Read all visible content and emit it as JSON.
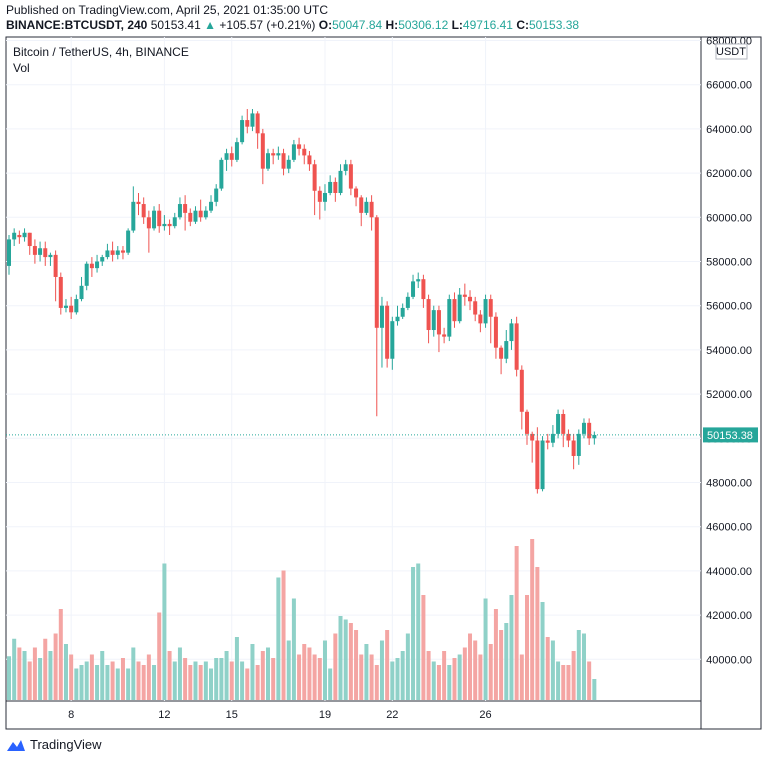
{
  "header": {
    "published": "Published on TradingView.com, April 25, 2021 01:35:00 UTC",
    "symbol": "BINANCE:BTCUSDT, 240",
    "last": "50153.41",
    "change": "+105.57 (+0.21%)",
    "o_label": "O:",
    "o": "50047.84",
    "h_label": "H:",
    "h": "50306.12",
    "l_label": "L:",
    "l": "49716.41",
    "c_label": "C:",
    "c": "50153.38"
  },
  "chart_title": "Bitcoin / TetherUS, 4h, BINANCE",
  "vol_label": "Vol",
  "footer": {
    "brand": "TradingView"
  },
  "colors": {
    "up": "#26a69a",
    "down": "#ef5350",
    "up_vol": "#8fd1c8",
    "down_vol": "#f4a5a3",
    "grid": "#f0f3fa"
  },
  "chart_data": {
    "type": "candlestick",
    "price_axis": {
      "unit_label": "USDT",
      "ticks": [
        "68000.00",
        "66000.00",
        "64000.00",
        "62000.00",
        "60000.00",
        "58000.00",
        "56000.00",
        "54000.00",
        "52000.00",
        "50000.00",
        "48000.00",
        "46000.00",
        "44000.00",
        "42000.00",
        "40000.00"
      ],
      "ylim": [
        38500,
        68300
      ],
      "last_price_label": "50153.38",
      "last_price": 50153.38
    },
    "x_axis": {
      "ticks": [
        "8",
        "12",
        "15",
        "19",
        "22",
        "26"
      ],
      "tick_index": [
        12,
        30,
        43,
        61,
        74,
        92
      ]
    },
    "candles": [
      [
        57800,
        59000,
        57400,
        59200
      ],
      [
        59000,
        59300,
        58700,
        59500
      ],
      [
        59200,
        59100,
        58800,
        59400
      ],
      [
        59100,
        59300,
        58900,
        59500
      ],
      [
        59300,
        58700,
        58300,
        59300
      ],
      [
        58700,
        58300,
        57900,
        59000
      ],
      [
        58300,
        58600,
        58000,
        58900
      ],
      [
        58600,
        58200,
        57800,
        58900
      ],
      [
        58200,
        58300,
        57800,
        58400
      ],
      [
        58300,
        57300,
        56200,
        58500
      ],
      [
        57300,
        55900,
        55600,
        57500
      ],
      [
        55900,
        56000,
        55700,
        56300
      ],
      [
        56000,
        55700,
        55400,
        56400
      ],
      [
        55700,
        56300,
        55600,
        56500
      ],
      [
        56300,
        56900,
        56200,
        57300
      ],
      [
        56900,
        57900,
        56700,
        58000
      ],
      [
        57900,
        57700,
        57300,
        58200
      ],
      [
        57700,
        58000,
        57500,
        58300
      ],
      [
        58000,
        58200,
        57800,
        58300
      ],
      [
        58200,
        58500,
        58100,
        58800
      ],
      [
        58500,
        58300,
        58000,
        58900
      ],
      [
        58300,
        58500,
        58100,
        58700
      ],
      [
        58500,
        58400,
        58100,
        58700
      ],
      [
        58400,
        59400,
        58300,
        59500
      ],
      [
        59400,
        60700,
        59300,
        61400
      ],
      [
        60700,
        60600,
        60100,
        61100
      ],
      [
        60600,
        60000,
        59700,
        60900
      ],
      [
        60000,
        59500,
        58400,
        60300
      ],
      [
        59500,
        60300,
        59400,
        60500
      ],
      [
        60300,
        59600,
        59300,
        60600
      ],
      [
        59600,
        59700,
        59400,
        60100
      ],
      [
        59700,
        59600,
        59200,
        59900
      ],
      [
        59600,
        60000,
        59500,
        60200
      ],
      [
        60000,
        60600,
        59900,
        60900
      ],
      [
        60600,
        60200,
        59400,
        61000
      ],
      [
        60200,
        59800,
        59600,
        60400
      ],
      [
        59800,
        60300,
        59700,
        60500
      ],
      [
        60300,
        60000,
        59800,
        60800
      ],
      [
        60000,
        60300,
        59900,
        60500
      ],
      [
        60300,
        60700,
        60200,
        61000
      ],
      [
        60700,
        61300,
        60500,
        61500
      ],
      [
        61300,
        62600,
        61200,
        62700
      ],
      [
        62600,
        62900,
        62100,
        63100
      ],
      [
        62900,
        62600,
        62300,
        63200
      ],
      [
        62600,
        63400,
        62500,
        63600
      ],
      [
        63400,
        64400,
        63300,
        64600
      ],
      [
        64400,
        64100,
        63800,
        64900
      ],
      [
        64100,
        64700,
        63900,
        64900
      ],
      [
        64700,
        63800,
        63100,
        64800
      ],
      [
        63800,
        62200,
        61500,
        64000
      ],
      [
        62200,
        62900,
        62100,
        63100
      ],
      [
        62900,
        62800,
        62400,
        63100
      ],
      [
        62800,
        62900,
        62600,
        63200
      ],
      [
        62900,
        62200,
        61900,
        63100
      ],
      [
        62200,
        62600,
        62000,
        62800
      ],
      [
        62600,
        63300,
        62500,
        63500
      ],
      [
        63300,
        63100,
        62800,
        63600
      ],
      [
        63100,
        62800,
        62400,
        63300
      ],
      [
        62800,
        62400,
        62100,
        63000
      ],
      [
        62400,
        61200,
        60100,
        62600
      ],
      [
        61200,
        60700,
        59900,
        61400
      ],
      [
        60700,
        61100,
        60300,
        61500
      ],
      [
        61100,
        61600,
        61000,
        61900
      ],
      [
        61600,
        61100,
        60700,
        61800
      ],
      [
        61100,
        62100,
        61000,
        62400
      ],
      [
        62100,
        62400,
        61900,
        62600
      ],
      [
        62400,
        61300,
        61000,
        62600
      ],
      [
        61300,
        60900,
        60500,
        61400
      ],
      [
        60900,
        60200,
        59600,
        61000
      ],
      [
        60200,
        60700,
        60100,
        60900
      ],
      [
        60700,
        60000,
        59400,
        61000
      ],
      [
        60000,
        55000,
        51000,
        60100
      ],
      [
        55000,
        56000,
        53200,
        56400
      ],
      [
        56000,
        53600,
        53200,
        56200
      ],
      [
        53600,
        55300,
        53100,
        55500
      ],
      [
        55300,
        55500,
        55100,
        56000
      ],
      [
        55500,
        55900,
        55400,
        56100
      ],
      [
        55900,
        56400,
        55800,
        56600
      ],
      [
        56400,
        57100,
        56300,
        57400
      ],
      [
        57100,
        57200,
        56800,
        57500
      ],
      [
        57200,
        56300,
        55900,
        57400
      ],
      [
        56300,
        54900,
        54300,
        56500
      ],
      [
        54900,
        55800,
        54600,
        56000
      ],
      [
        55800,
        54700,
        53900,
        56000
      ],
      [
        54700,
        54600,
        54300,
        55000
      ],
      [
        54600,
        56300,
        54400,
        56500
      ],
      [
        56300,
        55300,
        55000,
        56600
      ],
      [
        55300,
        56500,
        55200,
        56800
      ],
      [
        56500,
        56400,
        56000,
        57000
      ],
      [
        56400,
        56200,
        55800,
        56700
      ],
      [
        56200,
        55600,
        55300,
        56400
      ],
      [
        55600,
        55200,
        54800,
        55800
      ],
      [
        55200,
        56300,
        55000,
        56500
      ],
      [
        56300,
        55500,
        54300,
        56500
      ],
      [
        55500,
        54100,
        53600,
        55700
      ],
      [
        54100,
        53600,
        52900,
        54200
      ],
      [
        53600,
        54400,
        53400,
        54900
      ],
      [
        54400,
        55200,
        54000,
        55400
      ],
      [
        55200,
        53100,
        52800,
        55500
      ],
      [
        53100,
        51200,
        50400,
        53300
      ],
      [
        51200,
        50200,
        49700,
        51300
      ],
      [
        50200,
        49900,
        48900,
        50300
      ],
      [
        49900,
        47700,
        47500,
        50500
      ],
      [
        47700,
        49900,
        47600,
        50100
      ],
      [
        49900,
        49800,
        49500,
        50200
      ],
      [
        49800,
        50200,
        49600,
        50600
      ],
      [
        50200,
        51100,
        50000,
        51300
      ],
      [
        51100,
        50200,
        49600,
        51300
      ],
      [
        50200,
        49900,
        49600,
        50400
      ],
      [
        49900,
        49200,
        48600,
        50200
      ],
      [
        49200,
        50200,
        48800,
        50400
      ],
      [
        50200,
        50700,
        50000,
        50900
      ],
      [
        50700,
        50000,
        49700,
        50900
      ],
      [
        50000,
        50153,
        49716,
        50306
      ]
    ],
    "volume": [
      25,
      35,
      30,
      28,
      22,
      30,
      24,
      35,
      28,
      38,
      52,
      32,
      26,
      18,
      20,
      22,
      26,
      20,
      28,
      20,
      22,
      18,
      24,
      18,
      30,
      22,
      20,
      26,
      20,
      50,
      78,
      28,
      22,
      30,
      24,
      20,
      22,
      20,
      22,
      18,
      24,
      24,
      28,
      22,
      36,
      22,
      18,
      32,
      20,
      28,
      30,
      24,
      70,
      74,
      34,
      58,
      26,
      32,
      30,
      26,
      24,
      34,
      18,
      38,
      48,
      46,
      44,
      40,
      26,
      32,
      26,
      20,
      34,
      40,
      22,
      24,
      28,
      38,
      76,
      78,
      60,
      28,
      22,
      20,
      28,
      20,
      24,
      26,
      30,
      38,
      34,
      26,
      58,
      32,
      52,
      40,
      44,
      60,
      88,
      26,
      60,
      92,
      76,
      56,
      36,
      34,
      22,
      20,
      20,
      28,
      40,
      38,
      22,
      12
    ]
  }
}
